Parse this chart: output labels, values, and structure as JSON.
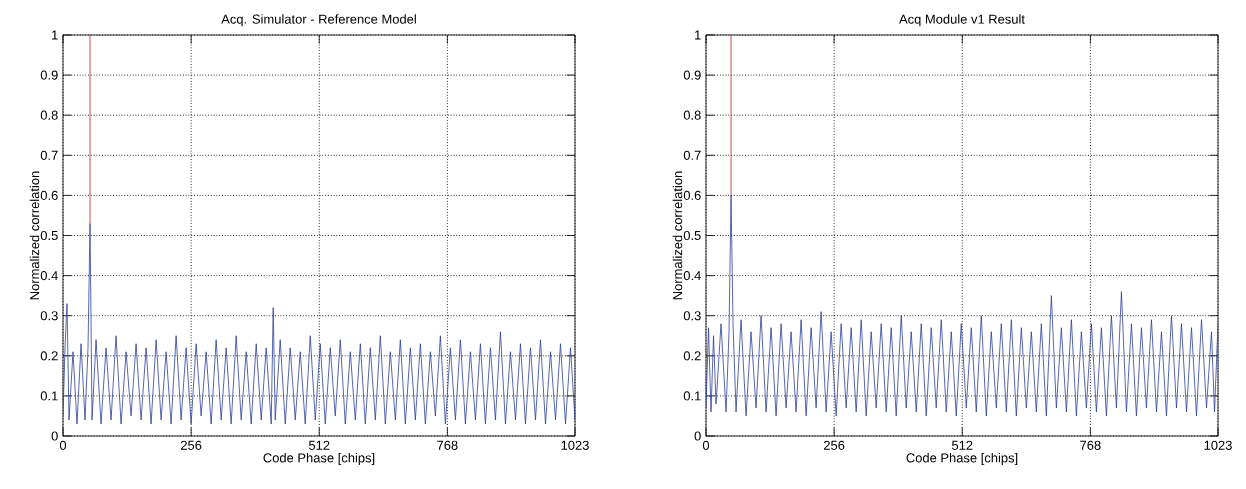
{
  "chart_data": [
    {
      "type": "line",
      "title": "Acq. Simulator - Reference Model",
      "xlabel": "Code Phase [chips]",
      "ylabel": "Normalized correlation",
      "xlim": [
        0,
        1023
      ],
      "ylim": [
        0,
        1
      ],
      "xticks": [
        0,
        256,
        512,
        768,
        1023
      ],
      "yticks": [
        0,
        0.1,
        0.2,
        0.3,
        0.4,
        0.5,
        0.6,
        0.7,
        0.8,
        0.9,
        1
      ],
      "grid": true,
      "series": [
        {
          "color": "#2b3f9b",
          "x": [
            0,
            4,
            8,
            12,
            20,
            28,
            36,
            44,
            50,
            54,
            58,
            66,
            76,
            86,
            96,
            106,
            116,
            126,
            136,
            146,
            156,
            166,
            176,
            186,
            196,
            206,
            216,
            226,
            236,
            246,
            256,
            266,
            276,
            286,
            296,
            306,
            316,
            326,
            336,
            346,
            356,
            366,
            376,
            386,
            396,
            406,
            416,
            420,
            424,
            434,
            444,
            454,
            464,
            474,
            484,
            494,
            504,
            514,
            524,
            534,
            544,
            554,
            564,
            574,
            584,
            594,
            604,
            614,
            624,
            634,
            644,
            654,
            664,
            674,
            684,
            694,
            704,
            714,
            724,
            734,
            744,
            754,
            764,
            774,
            784,
            794,
            804,
            814,
            824,
            834,
            844,
            854,
            864,
            874,
            884,
            894,
            904,
            914,
            924,
            934,
            944,
            954,
            964,
            974,
            984,
            994,
            1004,
            1014,
            1023
          ],
          "values": [
            0.05,
            0.22,
            0.33,
            0.04,
            0.21,
            0.03,
            0.23,
            0.04,
            0.22,
            0.53,
            0.04,
            0.24,
            0.03,
            0.22,
            0.04,
            0.25,
            0.03,
            0.21,
            0.05,
            0.23,
            0.04,
            0.22,
            0.03,
            0.24,
            0.04,
            0.21,
            0.03,
            0.25,
            0.04,
            0.22,
            0.03,
            0.23,
            0.05,
            0.21,
            0.03,
            0.24,
            0.04,
            0.22,
            0.03,
            0.25,
            0.04,
            0.21,
            0.03,
            0.23,
            0.04,
            0.22,
            0.03,
            0.32,
            0.04,
            0.24,
            0.03,
            0.22,
            0.04,
            0.21,
            0.03,
            0.25,
            0.04,
            0.23,
            0.03,
            0.22,
            0.05,
            0.24,
            0.03,
            0.21,
            0.04,
            0.23,
            0.03,
            0.22,
            0.04,
            0.25,
            0.03,
            0.21,
            0.04,
            0.24,
            0.03,
            0.22,
            0.04,
            0.23,
            0.03,
            0.21,
            0.05,
            0.25,
            0.03,
            0.22,
            0.04,
            0.24,
            0.03,
            0.21,
            0.04,
            0.23,
            0.03,
            0.22,
            0.04,
            0.26,
            0.03,
            0.21,
            0.04,
            0.23,
            0.03,
            0.22,
            0.04,
            0.24,
            0.03,
            0.21,
            0.04,
            0.23,
            0.03,
            0.22,
            0.04
          ]
        },
        {
          "color": "#c0202a",
          "x": [
            54,
            54
          ],
          "values": [
            0.53,
            1.0
          ]
        }
      ]
    },
    {
      "type": "line",
      "title": "Acq Module v1 Result",
      "xlabel": "Code Phase [chips]",
      "ylabel": "Normalized correlation",
      "xlim": [
        0,
        1023
      ],
      "ylim": [
        0,
        1
      ],
      "xticks": [
        0,
        256,
        512,
        768,
        1023
      ],
      "yticks": [
        0,
        0.1,
        0.2,
        0.3,
        0.4,
        0.5,
        0.6,
        0.7,
        0.8,
        0.9,
        1
      ],
      "grid": true,
      "series": [
        {
          "color": "#2b3f9b",
          "x": [
            0,
            5,
            10,
            15,
            20,
            30,
            40,
            46,
            50,
            54,
            60,
            70,
            80,
            90,
            100,
            110,
            120,
            130,
            140,
            150,
            160,
            170,
            180,
            190,
            200,
            210,
            220,
            230,
            240,
            250,
            260,
            270,
            280,
            290,
            300,
            310,
            320,
            330,
            340,
            350,
            360,
            370,
            380,
            390,
            400,
            410,
            420,
            430,
            440,
            450,
            460,
            470,
            480,
            490,
            500,
            510,
            520,
            530,
            540,
            550,
            560,
            570,
            580,
            590,
            600,
            610,
            620,
            630,
            640,
            650,
            660,
            670,
            680,
            690,
            700,
            710,
            720,
            730,
            740,
            750,
            760,
            770,
            780,
            790,
            800,
            810,
            820,
            830,
            840,
            850,
            860,
            870,
            880,
            890,
            900,
            910,
            920,
            930,
            940,
            950,
            960,
            970,
            980,
            990,
            1000,
            1010,
            1016,
            1023
          ],
          "values": [
            0.07,
            0.27,
            0.06,
            0.25,
            0.08,
            0.28,
            0.06,
            0.26,
            0.6,
            0.28,
            0.06,
            0.29,
            0.05,
            0.26,
            0.07,
            0.3,
            0.06,
            0.27,
            0.05,
            0.28,
            0.07,
            0.26,
            0.06,
            0.29,
            0.05,
            0.27,
            0.07,
            0.31,
            0.06,
            0.26,
            0.05,
            0.28,
            0.07,
            0.27,
            0.06,
            0.29,
            0.05,
            0.26,
            0.07,
            0.28,
            0.06,
            0.27,
            0.05,
            0.3,
            0.07,
            0.26,
            0.06,
            0.28,
            0.05,
            0.27,
            0.07,
            0.29,
            0.06,
            0.26,
            0.05,
            0.28,
            0.07,
            0.27,
            0.06,
            0.3,
            0.05,
            0.26,
            0.07,
            0.28,
            0.06,
            0.29,
            0.05,
            0.27,
            0.07,
            0.26,
            0.06,
            0.28,
            0.05,
            0.35,
            0.07,
            0.27,
            0.06,
            0.29,
            0.05,
            0.26,
            0.07,
            0.28,
            0.06,
            0.27,
            0.05,
            0.3,
            0.07,
            0.36,
            0.06,
            0.28,
            0.05,
            0.27,
            0.07,
            0.29,
            0.06,
            0.26,
            0.05,
            0.3,
            0.07,
            0.28,
            0.06,
            0.27,
            0.05,
            0.29,
            0.07,
            0.26,
            0.06,
            0.28
          ]
        },
        {
          "color": "#c0202a",
          "x": [
            50,
            50
          ],
          "values": [
            0.6,
            1.0
          ]
        }
      ]
    }
  ]
}
